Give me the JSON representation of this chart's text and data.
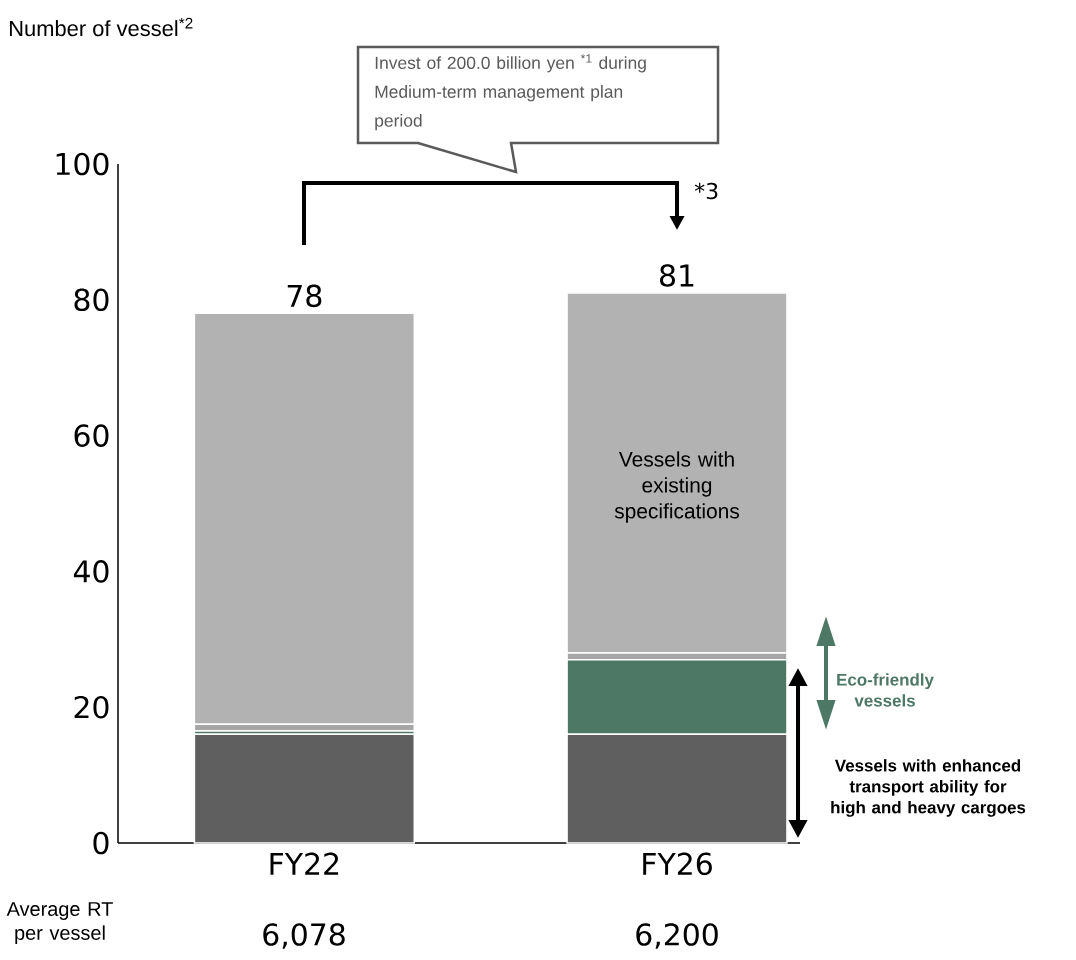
{
  "chart_data": {
    "type": "bar",
    "stacked": true,
    "categories": [
      "FY22",
      "FY26"
    ],
    "series": [
      {
        "name": "Vessels with enhanced transport ability for high and heavy cargoes",
        "color": "#5f5f5f",
        "values": [
          16,
          16
        ]
      },
      {
        "name": "Eco-friendly vessels",
        "color": "#4e7866",
        "values": [
          0.5,
          11
        ]
      },
      {
        "color": "#a6a6a6",
        "values": [
          1,
          1
        ]
      },
      {
        "name": "Vessels with existing specifications",
        "color": "#b2b2b2",
        "values": [
          60.5,
          53
        ]
      }
    ],
    "totals": [
      "78",
      "81"
    ],
    "ylim": [
      0,
      100
    ],
    "yticks": [
      0,
      20,
      40,
      60,
      80,
      100
    ],
    "annotations": [
      "Invest of 200.0 billion yen $^{*1}$ during Medium-term management plan period",
      "*3",
      "Average RT per vessel",
      "6,078",
      "6,200",
      "Number of vessel$^{*2}$"
    ]
  }
}
